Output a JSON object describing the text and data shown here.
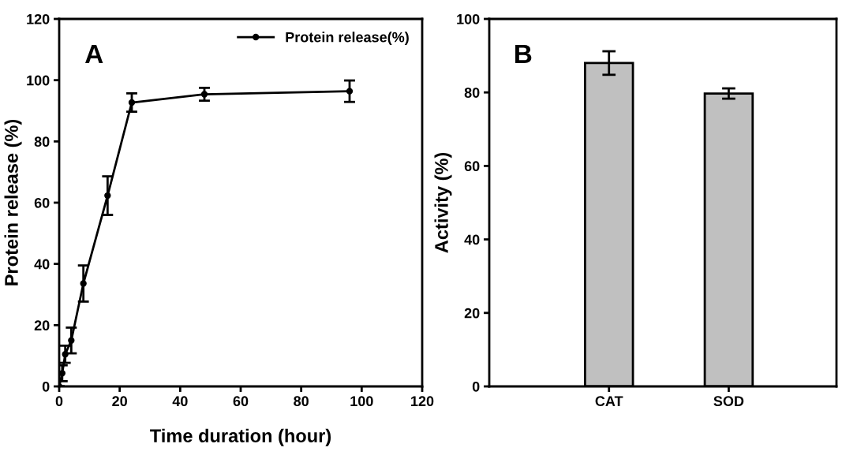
{
  "chart_data": [
    {
      "type": "line",
      "xlabel": "Time duration (hour)",
      "ylabel": "Protein release (%)",
      "annotations": [
        "A"
      ],
      "x": [
        0,
        1,
        2,
        4,
        8,
        16,
        24,
        48,
        96
      ],
      "series": [
        {
          "name": "Protein release(%)",
          "color": "#000000",
          "values": [
            0,
            4.3,
            10.5,
            15.0,
            33.6,
            62.3,
            92.7,
            95.4,
            96.4
          ],
          "errors": [
            null,
            2.6,
            2.8,
            4.2,
            5.9,
            6.3,
            3,
            2.1,
            3.5
          ]
        }
      ],
      "xlim": [
        0,
        120
      ],
      "xticks": [
        0,
        20,
        40,
        60,
        80,
        100,
        120
      ],
      "ylim": [
        0,
        120
      ],
      "yticks": [
        0,
        20,
        40,
        60,
        80,
        100,
        120
      ],
      "marker": "circle",
      "line_style": "solid",
      "legend": "top right",
      "grid": false
    },
    {
      "type": "bar",
      "ylabel": "Activity (%)",
      "annotations": [
        "B"
      ],
      "categories": [
        "CAT",
        "SOD"
      ],
      "values": [
        88.0,
        79.7
      ],
      "errors": [
        3.2,
        1.4
      ],
      "color": "#c0c0c0",
      "ylim": [
        0,
        100
      ],
      "yticks": [
        0,
        20,
        40,
        60,
        80,
        100
      ],
      "grid": false,
      "legend": false
    }
  ]
}
